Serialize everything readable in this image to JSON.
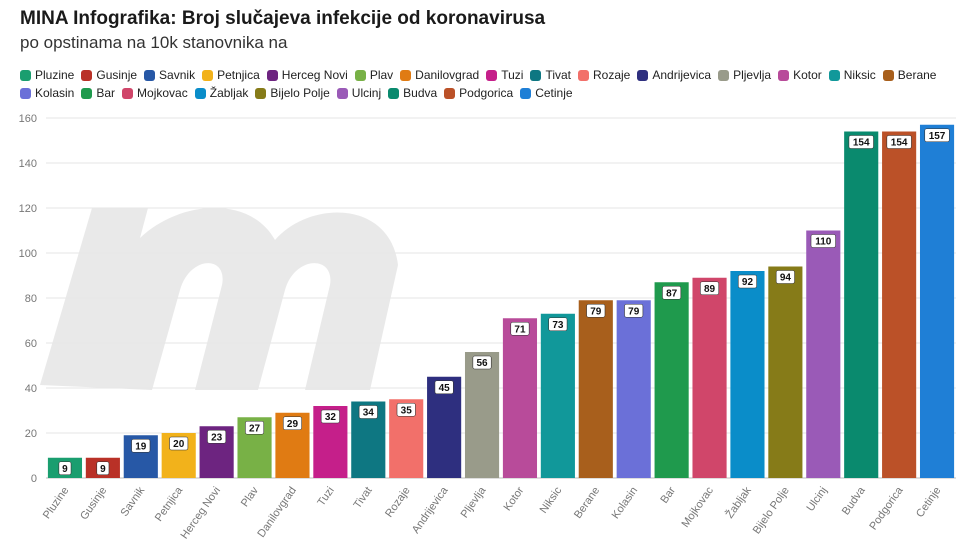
{
  "title": "MINA Infografika: Broj slučajeva infekcije od koronavirusa",
  "subtitle": "po opstinama na 10k stanovnika na",
  "chart_data": {
    "type": "bar",
    "categories": [
      "Pluzine",
      "Gusinje",
      "Savnik",
      "Petnjica",
      "Herceg Novi",
      "Plav",
      "Danilovgrad",
      "Tuzi",
      "Tivat",
      "Rozaje",
      "Andrijevica",
      "Pljevlja",
      "Kotor",
      "Niksic",
      "Berane",
      "Kolasin",
      "Bar",
      "Mojkovac",
      "Žabljak",
      "Bijelo Polje",
      "Ulcinj",
      "Budva",
      "Podgorica",
      "Cetinje"
    ],
    "values": [
      9,
      9,
      19,
      20,
      23,
      27,
      29,
      32,
      34,
      35,
      45,
      56,
      71,
      73,
      79,
      79,
      87,
      89,
      92,
      94,
      110,
      154,
      154,
      157
    ],
    "colors": [
      "#1a9e6f",
      "#b93127",
      "#2758a6",
      "#f2b21b",
      "#6d2480",
      "#78b146",
      "#e07b13",
      "#c51f8a",
      "#0e7782",
      "#f2706a",
      "#2e2f7f",
      "#999b8a",
      "#b84b9a",
      "#11989a",
      "#a85f1c",
      "#6b70d8",
      "#1f9a4d",
      "#d0466a",
      "#0a8dc9",
      "#867b18",
      "#9a5ab7",
      "#0a8a6e",
      "#bb5128",
      "#1f7fd6"
    ],
    "ylim": [
      0,
      160
    ],
    "yticks": [
      0,
      20,
      40,
      60,
      80,
      100,
      120,
      140,
      160
    ],
    "grid": true,
    "legend_position": "top"
  }
}
